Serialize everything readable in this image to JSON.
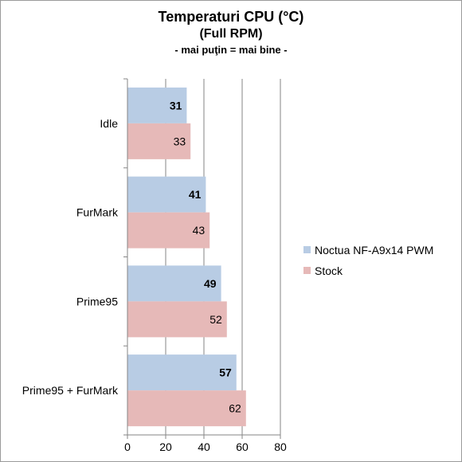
{
  "chart_data": {
    "type": "bar",
    "orientation": "horizontal",
    "title": "Temperaturi CPU (°C)",
    "subtitle": "(Full RPM)",
    "note": "- mai puţin = mai bine -",
    "categories": [
      "Idle",
      "FurMark",
      "Prime95",
      "Prime95 + FurMark"
    ],
    "series": [
      {
        "name": "Noctua NF-A9x14 PWM",
        "values": [
          31,
          41,
          49,
          57
        ],
        "color": "#b8cce4",
        "label_bold": true
      },
      {
        "name": "Stock",
        "values": [
          33,
          43,
          52,
          62
        ],
        "color": "#e6b9b8",
        "label_bold": false
      }
    ],
    "xlim": [
      0,
      80
    ],
    "xticks": [
      0,
      20,
      40,
      60,
      80
    ],
    "grid": true,
    "legend_position": "right"
  }
}
